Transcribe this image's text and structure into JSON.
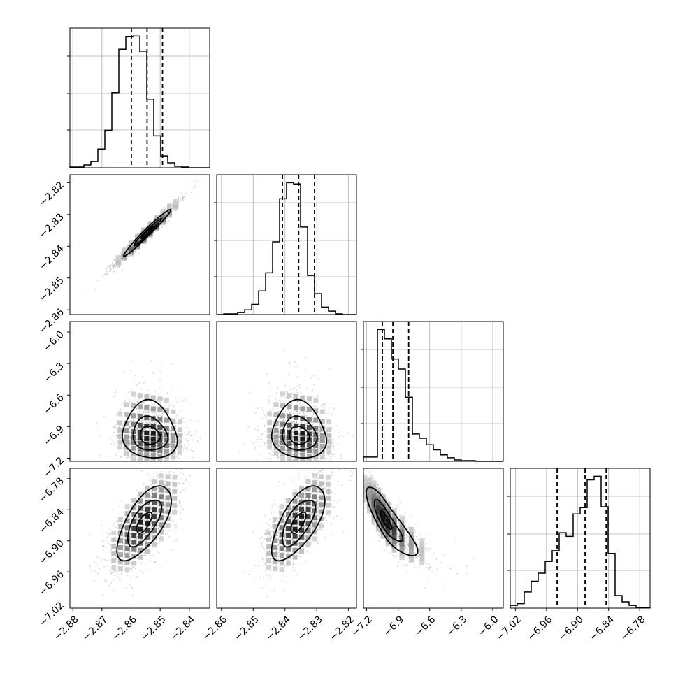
{
  "chart_data": {
    "type": "corner",
    "params": [
      {
        "range": [
          -2.881,
          -2.833
        ],
        "ticks": [
          -2.88,
          -2.87,
          -2.86,
          -2.85,
          -2.84
        ],
        "tick_labels": [
          "−2.88",
          "−2.87",
          "−2.86",
          "−2.85",
          "−2.84"
        ],
        "quantiles": [
          -2.8599,
          -2.8545,
          -2.8492
        ],
        "hist": {
          "edges_start": -2.881,
          "bin_width": 0.0024,
          "counts": [
            1,
            1,
            4,
            9,
            27,
            54,
            108,
            171,
            189,
            190,
            167,
            99,
            46,
            17,
            7,
            2,
            1,
            0,
            0,
            0
          ]
        }
      },
      {
        "range": [
          -2.8615,
          -2.8175
        ],
        "ticks": [
          -2.86,
          -2.85,
          -2.84,
          -2.83,
          -2.82
        ],
        "tick_labels": [
          "−2.86",
          "−2.85",
          "−2.84",
          "−2.83",
          "−2.82"
        ],
        "quantiles": [
          -2.8408,
          -2.8357,
          -2.8307
        ],
        "hist": {
          "edges_start": -2.8615,
          "bin_width": 0.0022,
          "counts": [
            0,
            1,
            1,
            3,
            7,
            15,
            35,
            62,
            108,
            172,
            196,
            194,
            130,
            58,
            31,
            11,
            5,
            1,
            0,
            0
          ]
        }
      },
      {
        "range": [
          -7.23,
          -5.9
        ],
        "ticks": [
          -7.2,
          -6.9,
          -6.6,
          -6.3,
          -6.0
        ],
        "tick_labels": [
          "−7.2",
          "−6.9",
          "−6.6",
          "−6.3",
          "−6.0"
        ],
        "quantiles": [
          -7.05,
          -6.95,
          -6.8
        ],
        "hist": {
          "edges_start": -7.23,
          "bin_width": 0.0665,
          "counts": [
            6,
            6,
            183,
            170,
            142,
            128,
            89,
            38,
            32,
            23,
            16,
            9,
            5,
            2,
            1,
            1,
            0,
            0,
            0,
            0
          ]
        }
      },
      {
        "range": [
          -7.03,
          -6.76
        ],
        "ticks": [
          -7.02,
          -6.96,
          -6.9,
          -6.84,
          -6.78
        ],
        "tick_labels": [
          "−7.02",
          "−6.96",
          "−6.90",
          "−6.84",
          "−6.78"
        ],
        "quantiles": [
          -6.9395,
          -6.8855,
          -6.8448
        ],
        "hist": {
          "edges_start": -7.03,
          "bin_width": 0.0135,
          "counts": [
            3,
            5,
            18,
            30,
            39,
            52,
            64,
            84,
            80,
            105,
            112,
            143,
            147,
            113,
            61,
            14,
            7,
            3,
            1,
            1
          ]
        }
      }
    ],
    "pairs": [
      {
        "row": 1,
        "col": 0,
        "center": [
          -2.8545,
          -2.8357
        ],
        "sd": [
          0.0055,
          0.005
        ],
        "corr": 0.98,
        "skew": [
          0,
          0
        ],
        "contours": [
          0.39,
          0.86,
          1.46
        ]
      },
      {
        "row": 2,
        "col": 0,
        "center": [
          -2.8535,
          -6.99
        ],
        "sd": [
          0.0057,
          0.13
        ],
        "corr": -0.1,
        "skew": [
          0,
          0.55
        ],
        "contours": [
          0.6,
          1.05,
          1.65
        ]
      },
      {
        "row": 2,
        "col": 1,
        "center": [
          -2.8355,
          -6.99
        ],
        "sd": [
          0.0052,
          0.13
        ],
        "corr": -0.1,
        "skew": [
          0,
          0.55
        ],
        "contours": [
          0.6,
          1.05,
          1.65
        ]
      },
      {
        "row": 3,
        "col": 0,
        "center": [
          -2.8555,
          -6.865
        ],
        "sd": [
          0.0058,
          0.045
        ],
        "corr": 0.66,
        "skew": [
          0,
          0
        ],
        "contours": [
          0.45,
          1.0,
          1.6
        ]
      },
      {
        "row": 3,
        "col": 1,
        "center": [
          -2.8358,
          -6.865
        ],
        "sd": [
          0.0052,
          0.045
        ],
        "corr": 0.66,
        "skew": [
          0,
          0
        ],
        "contours": [
          0.45,
          1.0,
          1.6
        ]
      },
      {
        "row": 3,
        "col": 2,
        "center": [
          -7.02,
          -6.86
        ],
        "sd": [
          0.11,
          0.04
        ],
        "corr": -0.85,
        "skew": [
          0.7,
          0
        ],
        "contours": [
          0.45,
          1.0,
          1.65
        ]
      }
    ],
    "grid": true,
    "colors": {
      "line": "#000000",
      "grid": "#b0b0b0",
      "scatter": "#808080"
    }
  }
}
